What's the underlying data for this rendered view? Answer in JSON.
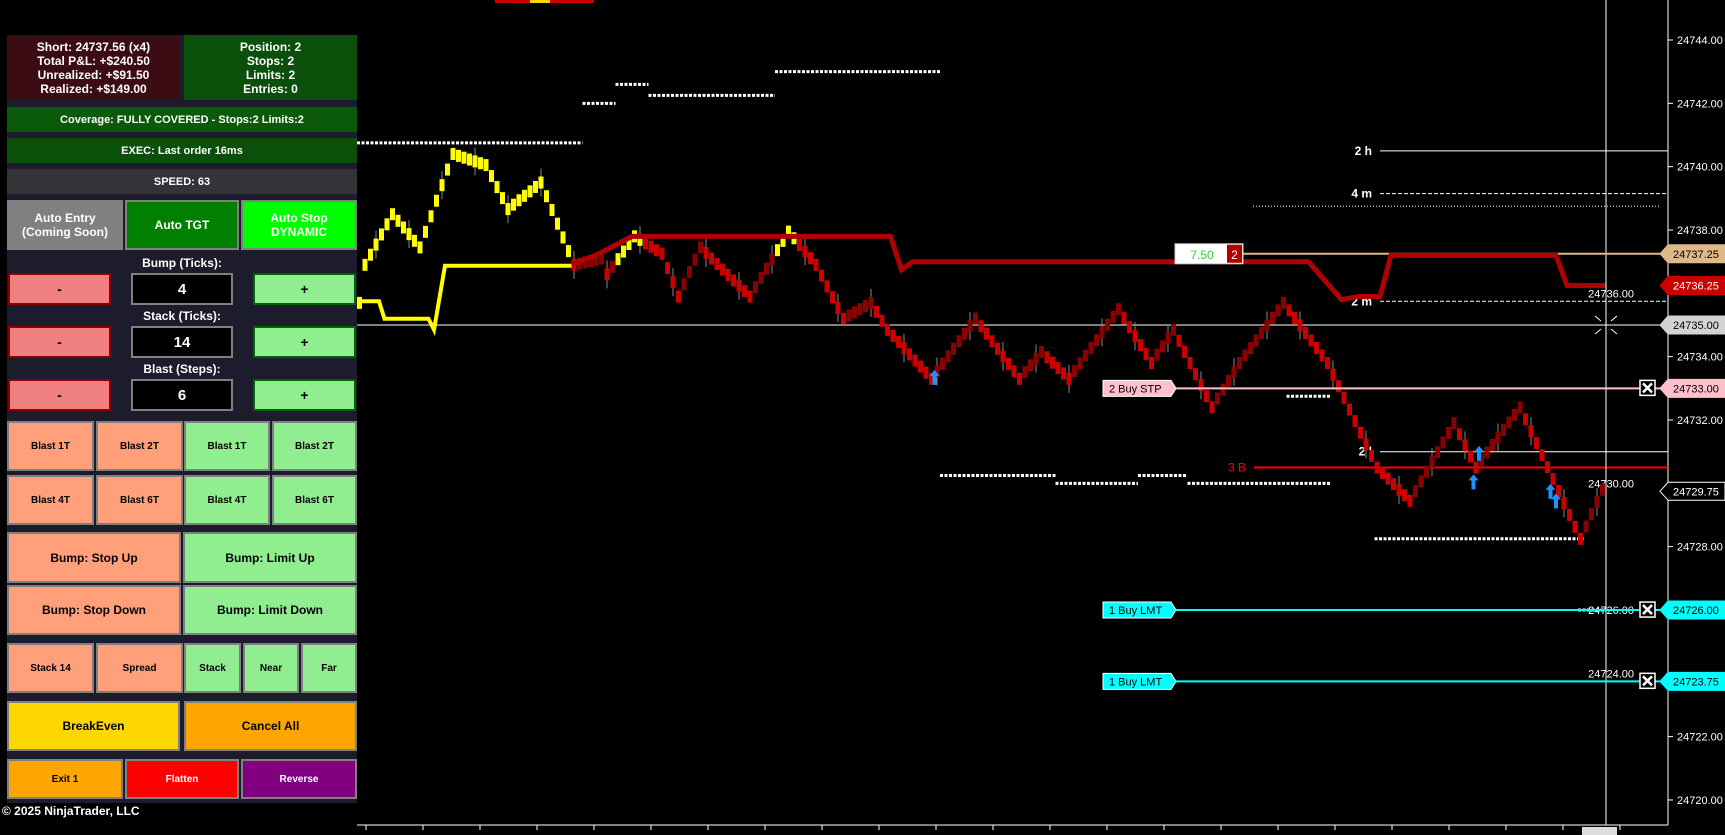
{
  "panel": {
    "info_left": [
      "Short: 24737.56 (x4)",
      "Total P&L: +$240.50",
      "Unrealized: +$91.50",
      "Realized: +$149.00"
    ],
    "info_right": [
      "Position: 2",
      "Stops: 2",
      "Limits: 2",
      "Entries: 0"
    ],
    "coverage": "Coverage: FULLY COVERED - Stops:2 Limits:2",
    "exec": "EXEC: Last order 16ms",
    "speed": "SPEED: 63",
    "auto_entry": [
      "Auto Entry",
      "(Coming Soon)"
    ],
    "auto_tgt": "Auto TGT",
    "auto_stop": [
      "Auto Stop",
      "DYNAMIC"
    ],
    "steppers": [
      {
        "label": "Bump (Ticks):",
        "value": "4",
        "minus": "-",
        "plus": "+"
      },
      {
        "label": "Stack (Ticks):",
        "value": "14",
        "minus": "-",
        "plus": "+"
      },
      {
        "label": "Blast (Steps):",
        "value": "6",
        "minus": "-",
        "plus": "+"
      }
    ],
    "blast_row1": [
      "Blast 1T",
      "Blast 2T",
      "Blast 1T",
      "Blast 2T"
    ],
    "blast_row2": [
      "Blast 4T",
      "Blast 6T",
      "Blast 4T",
      "Blast 6T"
    ],
    "bump_stop_up": "Bump: Stop Up",
    "bump_limit_up": "Bump: Limit Up",
    "bump_stop_down": "Bump: Stop Down",
    "bump_limit_down": "Bump: Limit Down",
    "stack_row": [
      "Stack 14",
      "Spread",
      "Stack",
      "Near",
      "Far"
    ],
    "breakeven": "BreakEven",
    "cancel_all": "Cancel All",
    "exit": "Exit 1",
    "flatten": "Flatten",
    "reverse": "Reverse"
  },
  "footer": {
    "copyright": "© 2025 NinjaTrader, LLC"
  },
  "chart": {
    "price_ticks": [
      "24744.00",
      "24742.00",
      "24740.00",
      "24738.00",
      "24736.00",
      "24734.00",
      "24732.00",
      "24730.00",
      "24728.00",
      "24726.00",
      "24724.00",
      "24722.00",
      "24720.00"
    ],
    "price_markers": [
      {
        "price": 24737.25,
        "label": "24737.25",
        "bg": "#deb887",
        "fg": "#000000"
      },
      {
        "price": 24736.25,
        "label": "24736.25",
        "bg": "#cc0000",
        "fg": "#ffffff"
      },
      {
        "price": 24735.0,
        "label": "24735.00",
        "bg": "#d3d3d3",
        "fg": "#000000"
      },
      {
        "price": 24733.0,
        "label": "24733.00",
        "bg": "#ffc0cb",
        "fg": "#000000"
      },
      {
        "price": 24729.75,
        "label": "24729.75",
        "bg": "#000000",
        "fg": "#ffffff"
      },
      {
        "price": 24726.0,
        "label": "24726.00",
        "bg": "#00ffff",
        "fg": "#000000"
      },
      {
        "price": 24723.75,
        "label": "24723.75",
        "bg": "#00ffff",
        "fg": "#000000"
      }
    ],
    "position_tag": {
      "pnl": "7.50",
      "qty": "2",
      "price": 24737.25
    },
    "orders": [
      {
        "label": "2  Buy STP",
        "price": 24733.0,
        "color": "#ffc0cb"
      },
      {
        "label": "1  Buy LMT",
        "price": 24726.0,
        "color": "#00ffff"
      },
      {
        "label": "1  Buy LMT",
        "price": 24723.75,
        "color": "#00ffff"
      }
    ],
    "level_lines": [
      {
        "label": "2 h",
        "price": 24740.5,
        "style": "solid",
        "color": "#ffffff"
      },
      {
        "label": "4 m",
        "price": 24739.15,
        "style": "dashed",
        "color": "#ffffff"
      },
      {
        "label": "2 m",
        "price": 24735.75,
        "style": "dashed",
        "color": "#ffffff"
      },
      {
        "label": "2 l",
        "price": 24731.0,
        "style": "solid",
        "color": "#ffffff"
      },
      {
        "label": "3 B",
        "price": 24730.5,
        "style": "solid",
        "color": "#ff0000"
      }
    ],
    "candle_path": [
      [
        0,
        24735.7
      ],
      [
        1,
        24736.9
      ],
      [
        6,
        24738.5
      ],
      [
        11,
        24737.45
      ],
      [
        17,
        24740.4
      ],
      [
        23,
        24740.05
      ],
      [
        27,
        24738.66
      ],
      [
        33,
        24739.5
      ],
      [
        39,
        24736.9
      ],
      [
        44,
        24737.1
      ],
      [
        45,
        24736.6
      ],
      [
        50,
        24737.8
      ],
      [
        55,
        24737.25
      ],
      [
        58,
        24735.9
      ],
      [
        62,
        24737.45
      ],
      [
        66,
        24736.75
      ],
      [
        71,
        24735.9
      ],
      [
        78,
        24737.95
      ],
      [
        83,
        24736.9
      ],
      [
        88,
        24735.2
      ],
      [
        93,
        24735.7
      ],
      [
        96,
        24734.85
      ],
      [
        104,
        24733.3
      ],
      [
        112,
        24735.2
      ],
      [
        120,
        24733.3
      ],
      [
        124,
        24734.15
      ],
      [
        129,
        24733.3
      ],
      [
        138,
        24735.5
      ],
      [
        144,
        24733.8
      ],
      [
        148,
        24734.85
      ],
      [
        155,
        24732.4
      ],
      [
        160,
        24733.8
      ],
      [
        168,
        24735.7
      ],
      [
        176,
        24733.8
      ],
      [
        185,
        24730.5
      ],
      [
        191,
        24729.45
      ],
      [
        199,
        24731.9
      ],
      [
        203,
        24730.5
      ],
      [
        211,
        24732.4
      ],
      [
        222,
        24728.25
      ],
      [
        226,
        24729.8
      ]
    ],
    "stop_line": [
      [
        39,
        24736.9
      ],
      [
        44,
        24737.25
      ],
      [
        50,
        24737.8
      ],
      [
        97,
        24737.8
      ],
      [
        99,
        24736.75
      ],
      [
        101,
        24737.0
      ],
      [
        158,
        24737.0
      ],
      [
        173,
        24737.0
      ],
      [
        179,
        24735.8
      ],
      [
        182,
        24735.9
      ],
      [
        186,
        24735.9
      ],
      [
        188,
        24737.2
      ],
      [
        218,
        24737.2
      ],
      [
        220,
        24736.25
      ],
      [
        227,
        24736.25
      ]
    ],
    "trend_line": [
      [
        0,
        24735.75
      ],
      [
        4,
        24735.75
      ],
      [
        5,
        24735.2
      ],
      [
        13,
        24735.2
      ],
      [
        14,
        24734.85
      ],
      [
        16,
        24736.87
      ],
      [
        39,
        24736.87
      ]
    ],
    "dotted_levels": [
      [
        0,
        41,
        24740.75
      ],
      [
        41,
        47,
        24742.0
      ],
      [
        47,
        53,
        24742.6
      ],
      [
        53,
        76,
        24742.25
      ],
      [
        76,
        106,
        24743.0
      ],
      [
        106,
        127,
        24730.25
      ],
      [
        127,
        142,
        24730.0
      ],
      [
        142,
        151,
        24730.25
      ],
      [
        151,
        177,
        24730.0
      ],
      [
        169,
        177,
        24732.75
      ],
      [
        185,
        223,
        24728.25
      ],
      [
        222,
        227,
        24726.0
      ]
    ],
    "signal_arrows": [
      [
        105,
        24733.3
      ],
      [
        203,
        24730.0
      ],
      [
        204,
        24730.9
      ],
      [
        217,
        24729.7
      ],
      [
        218,
        24729.4
      ]
    ],
    "colors": {
      "up_bar": "#ffff00",
      "down_bar": "#cc0000",
      "stop_line": "#b00000",
      "trend_line": "#ffff00",
      "arrow": "#1e90ff"
    }
  }
}
